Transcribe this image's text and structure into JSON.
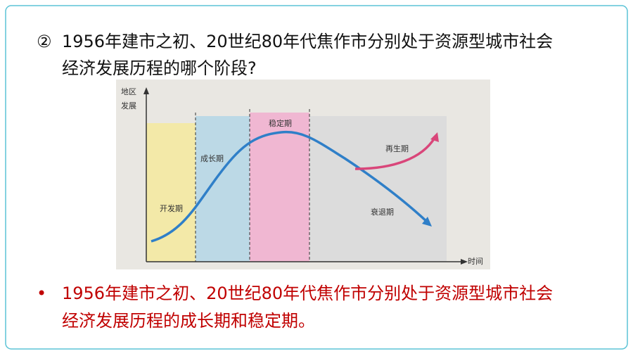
{
  "question": {
    "number": "②",
    "lines": [
      "1956年建市之初、20世纪80年代焦作市分别处于资源型城市社会",
      "经济发展历程的哪个阶段?"
    ]
  },
  "figure": {
    "y_axis_label": [
      "地区",
      "发展"
    ],
    "x_axis_label": "时间",
    "stages": [
      "开发期",
      "成长期",
      "稳定期",
      "再生期",
      "衰退期"
    ]
  },
  "answer": {
    "bullet": "•",
    "lines": [
      "1956年建市之初、20世纪80年代焦作市分别处于资源型城市社会",
      "经济发展历程的成长期和稳定期。"
    ]
  }
}
